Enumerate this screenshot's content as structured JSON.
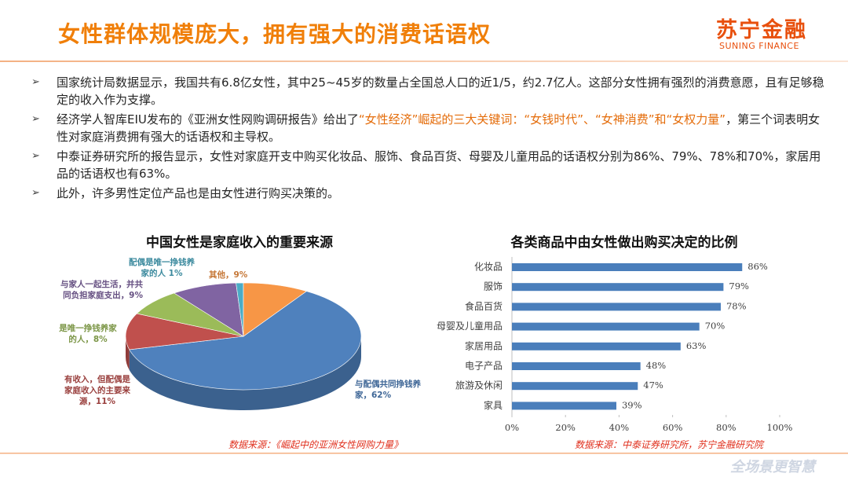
{
  "header": {
    "title": "女性群体规模庞大，拥有强大的消费话语权",
    "logo": "苏宁金融",
    "logo_subtitle": "SUNING FINANCE"
  },
  "bullets": [
    [
      {
        "text": "国家统计局数据显示，我国共有6.8亿女性，其中25~45岁的数量占全国总人口的近1/5，约2.7亿人。这部分女性拥有强烈的消费意愿，且有足够稳定的收入作为支撑。"
      }
    ],
    [
      {
        "text": "经济学人智库EIU发布的《亚洲女性网购调研报告》给出了"
      },
      {
        "text": "“女性经济”崛起的三大关键词：“女钱时代”、“女神消费”和“女权力量”",
        "color": "#e46c0a"
      },
      {
        "text": "，第三个词表明女性对家庭消费拥有强大的话语权和主导权。"
      }
    ],
    [
      {
        "text": "中泰证券研究所的报告显示，女性对家庭开支中购买化妆品、服饰、食品百货、母婴及儿童用品的话语权分别为86%、79%、78%和70%，家居用品的话语权也有63%。"
      }
    ],
    [
      {
        "text": "此外，许多男性定位产品也是由女性进行购买决策的。"
      }
    ]
  ],
  "chart_data": [
    {
      "type": "pie",
      "title": "中国女性是家庭收入的重要来源",
      "categories": [
        "与配偶共同挣钱养家，",
        "有收入，但配偶是家庭收入的主要来源，",
        "是唯一挣钱养家的人，",
        "与家人一起生活，并共同负担家庭支出，",
        "配偶是唯一挣钱养家的人 ",
        "其他，"
      ],
      "values": [
        62,
        11,
        8,
        9,
        1,
        9
      ],
      "value_labels": [
        "62%",
        "11%",
        "8%",
        "9%",
        "1%",
        "9%"
      ],
      "colors": [
        "#4f81bd",
        "#c0504d",
        "#9bbb59",
        "#8064a2",
        "#4bacc6",
        "#f79646"
      ],
      "source": "数据来源：《崛起中的亚洲女性网购力量》"
    },
    {
      "type": "bar",
      "orientation": "horizontal",
      "title": "各类商品中由女性做出购买决定的比例",
      "categories": [
        "化妆品",
        "服饰",
        "食品百货",
        "母婴及儿童用品",
        "家居用品",
        "电子产品",
        "旅游及休闲",
        "家具"
      ],
      "values": [
        86,
        79,
        78,
        70,
        63,
        48,
        47,
        39
      ],
      "value_labels": [
        "86%",
        "79%",
        "78%",
        "70%",
        "63%",
        "48%",
        "47%",
        "39%"
      ],
      "color": "#4a7ebb",
      "xlim": [
        0,
        100
      ],
      "xticks": [
        {
          "value": 0,
          "label": "0%"
        },
        {
          "value": 20,
          "label": "20%"
        },
        {
          "value": 40,
          "label": "40%"
        },
        {
          "value": 60,
          "label": "60%"
        },
        {
          "value": 80,
          "label": "80%"
        },
        {
          "value": 100,
          "label": "100%"
        }
      ],
      "source": "数据来源：中泰证券研究所，苏宁金融研究院"
    }
  ],
  "footer": {
    "watermark": "全场景更智慧"
  }
}
